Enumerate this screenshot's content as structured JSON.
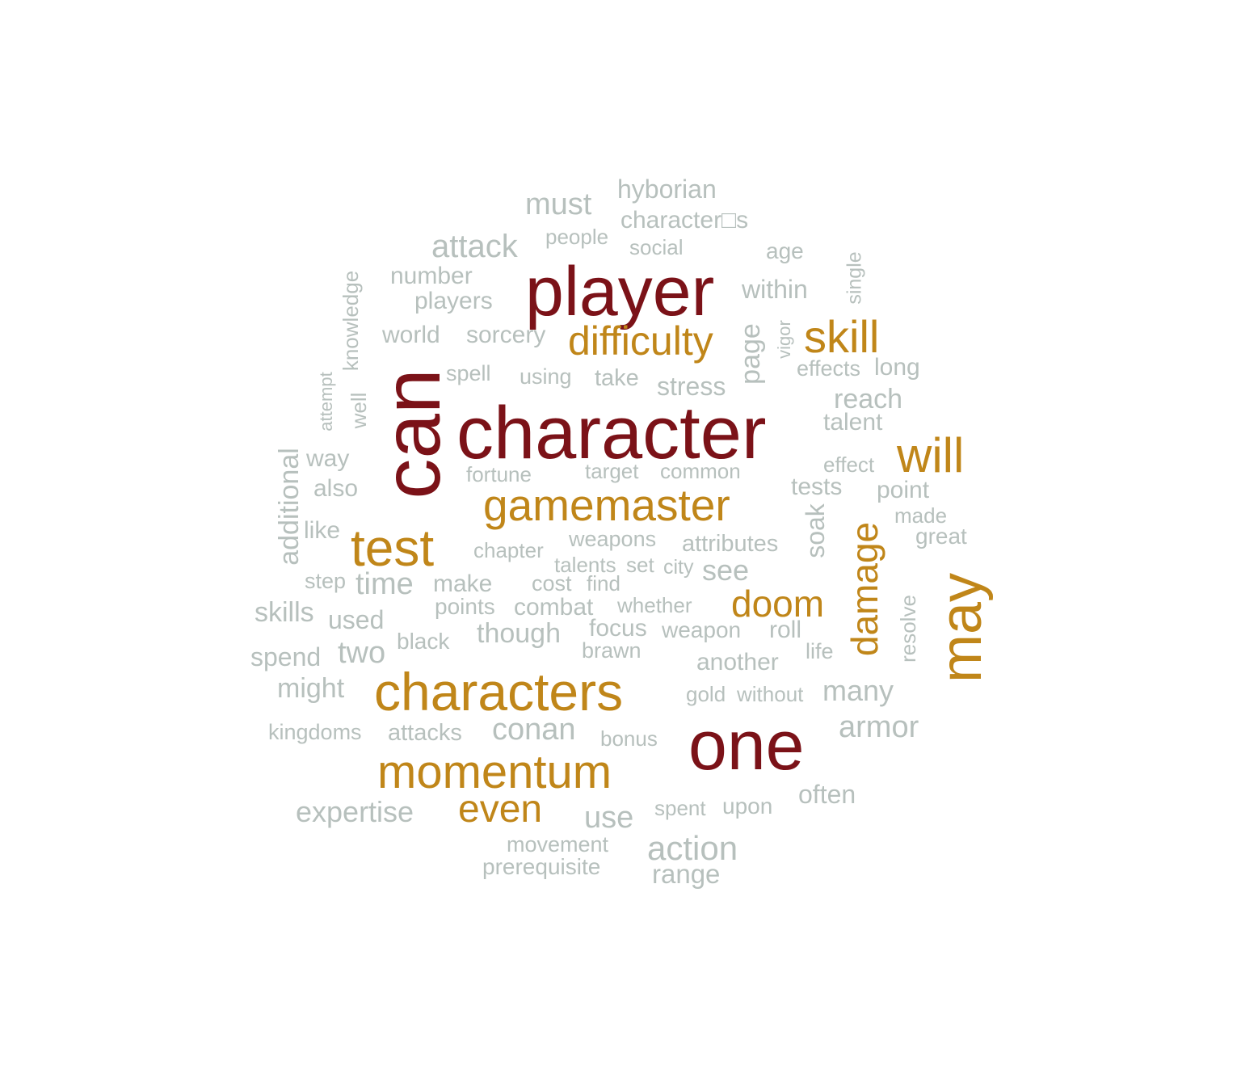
{
  "colors": {
    "tier1": "#7B1218",
    "tier2": "#C08619",
    "tier3": "#B7C0BD"
  },
  "words": [
    {
      "text": "character",
      "tier": 1
    },
    {
      "text": "can",
      "tier": 1
    },
    {
      "text": "player",
      "tier": 1
    },
    {
      "text": "one",
      "tier": 1
    },
    {
      "text": "characters",
      "tier": 2
    },
    {
      "text": "gamemaster",
      "tier": 2
    },
    {
      "text": "momentum",
      "tier": 2
    },
    {
      "text": "test",
      "tier": 2
    },
    {
      "text": "may",
      "tier": 2
    },
    {
      "text": "difficulty",
      "tier": 2
    },
    {
      "text": "skill",
      "tier": 2
    },
    {
      "text": "will",
      "tier": 2
    },
    {
      "text": "doom",
      "tier": 2
    },
    {
      "text": "even",
      "tier": 2
    },
    {
      "text": "damage",
      "tier": 2
    },
    {
      "text": "hyborian",
      "tier": 3
    },
    {
      "text": "character□s",
      "tier": 3
    },
    {
      "text": "must",
      "tier": 3
    },
    {
      "text": "people",
      "tier": 3
    },
    {
      "text": "social",
      "tier": 3
    },
    {
      "text": "age",
      "tier": 3
    },
    {
      "text": "attack",
      "tier": 3
    },
    {
      "text": "number",
      "tier": 3
    },
    {
      "text": "players",
      "tier": 3
    },
    {
      "text": "within",
      "tier": 3
    },
    {
      "text": "world",
      "tier": 3
    },
    {
      "text": "sorcery",
      "tier": 3
    },
    {
      "text": "spell",
      "tier": 3
    },
    {
      "text": "using",
      "tier": 3
    },
    {
      "text": "take",
      "tier": 3
    },
    {
      "text": "stress",
      "tier": 3
    },
    {
      "text": "effects",
      "tier": 3
    },
    {
      "text": "long",
      "tier": 3
    },
    {
      "text": "reach",
      "tier": 3
    },
    {
      "text": "talent",
      "tier": 3
    },
    {
      "text": "way",
      "tier": 3
    },
    {
      "text": "also",
      "tier": 3
    },
    {
      "text": "fortune",
      "tier": 3
    },
    {
      "text": "target",
      "tier": 3
    },
    {
      "text": "common",
      "tier": 3
    },
    {
      "text": "effect",
      "tier": 3
    },
    {
      "text": "tests",
      "tier": 3
    },
    {
      "text": "point",
      "tier": 3
    },
    {
      "text": "made",
      "tier": 3
    },
    {
      "text": "like",
      "tier": 3
    },
    {
      "text": "chapter",
      "tier": 3
    },
    {
      "text": "weapons",
      "tier": 3
    },
    {
      "text": "attributes",
      "tier": 3
    },
    {
      "text": "great",
      "tier": 3
    },
    {
      "text": "talents",
      "tier": 3
    },
    {
      "text": "set",
      "tier": 3
    },
    {
      "text": "city",
      "tier": 3
    },
    {
      "text": "see",
      "tier": 3
    },
    {
      "text": "step",
      "tier": 3
    },
    {
      "text": "time",
      "tier": 3
    },
    {
      "text": "make",
      "tier": 3
    },
    {
      "text": "cost",
      "tier": 3
    },
    {
      "text": "find",
      "tier": 3
    },
    {
      "text": "skills",
      "tier": 3
    },
    {
      "text": "points",
      "tier": 3
    },
    {
      "text": "combat",
      "tier": 3
    },
    {
      "text": "whether",
      "tier": 3
    },
    {
      "text": "used",
      "tier": 3
    },
    {
      "text": "though",
      "tier": 3
    },
    {
      "text": "focus",
      "tier": 3
    },
    {
      "text": "weapon",
      "tier": 3
    },
    {
      "text": "roll",
      "tier": 3
    },
    {
      "text": "spend",
      "tier": 3
    },
    {
      "text": "two",
      "tier": 3
    },
    {
      "text": "black",
      "tier": 3
    },
    {
      "text": "brawn",
      "tier": 3
    },
    {
      "text": "life",
      "tier": 3
    },
    {
      "text": "another",
      "tier": 3
    },
    {
      "text": "might",
      "tier": 3
    },
    {
      "text": "gold",
      "tier": 3
    },
    {
      "text": "without",
      "tier": 3
    },
    {
      "text": "many",
      "tier": 3
    },
    {
      "text": "kingdoms",
      "tier": 3
    },
    {
      "text": "attacks",
      "tier": 3
    },
    {
      "text": "conan",
      "tier": 3
    },
    {
      "text": "bonus",
      "tier": 3
    },
    {
      "text": "armor",
      "tier": 3
    },
    {
      "text": "expertise",
      "tier": 3
    },
    {
      "text": "use",
      "tier": 3
    },
    {
      "text": "spent",
      "tier": 3
    },
    {
      "text": "upon",
      "tier": 3
    },
    {
      "text": "often",
      "tier": 3
    },
    {
      "text": "movement",
      "tier": 3
    },
    {
      "text": "prerequisite",
      "tier": 3
    },
    {
      "text": "action",
      "tier": 3
    },
    {
      "text": "range",
      "tier": 3
    },
    {
      "text": "knowledge",
      "tier": 3
    },
    {
      "text": "attempt",
      "tier": 3
    },
    {
      "text": "well",
      "tier": 3
    },
    {
      "text": "additional",
      "tier": 3
    },
    {
      "text": "page",
      "tier": 3
    },
    {
      "text": "vigor",
      "tier": 3
    },
    {
      "text": "single",
      "tier": 3
    },
    {
      "text": "soak",
      "tier": 3
    },
    {
      "text": "resolve",
      "tier": 3
    }
  ]
}
